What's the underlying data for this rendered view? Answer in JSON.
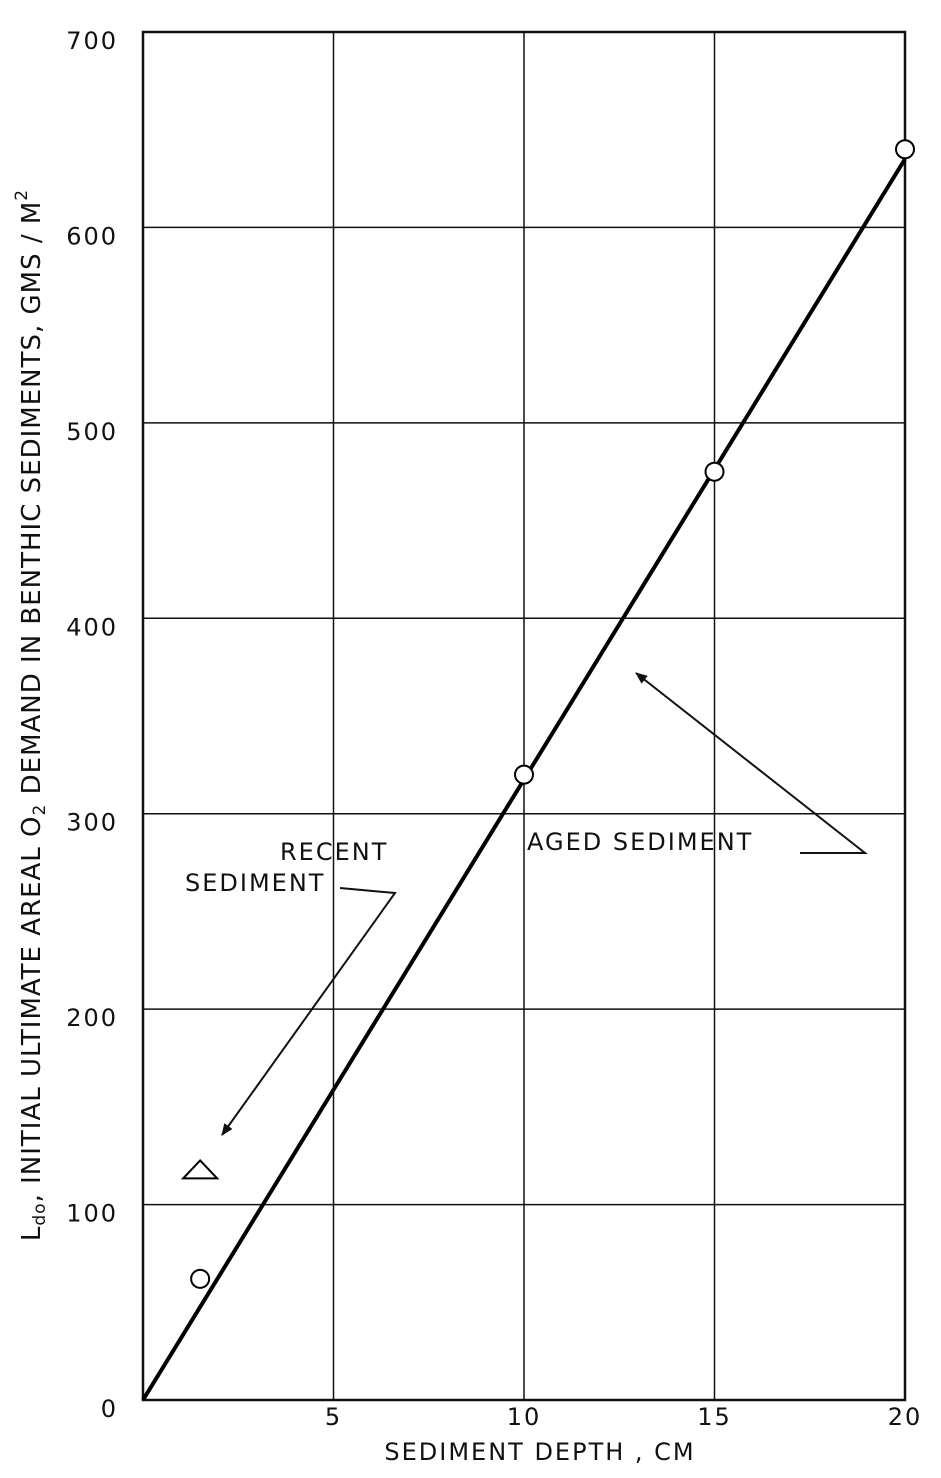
{
  "chart_data": {
    "type": "scatter",
    "xlabel": "SEDIMENT DEPTH , CM",
    "ylabel": [
      "L",
      "do",
      ", INITIAL ULTIMATE AREAL O",
      "2",
      " DEMAND IN BENTHIC SEDIMENTS, GMS / M",
      "2"
    ],
    "xlim": [
      0,
      20
    ],
    "xticks": [
      5,
      10,
      15,
      20
    ],
    "ylim": [
      0,
      700
    ],
    "yticks": [
      0,
      100,
      200,
      300,
      400,
      500,
      600,
      700
    ],
    "grid": true,
    "color": "#000000",
    "series": [
      {
        "marker": "circle",
        "x": [
          1.5,
          10,
          15,
          20
        ],
        "values": [
          62,
          320,
          475,
          640
        ]
      },
      {
        "marker": "triangle",
        "x": [
          1.5
        ],
        "values": [
          118
        ]
      }
    ],
    "fit_line": {
      "x": [
        0,
        20
      ],
      "values": [
        0,
        635
      ]
    },
    "annotations": [
      [
        "RECENT",
        "SEDIMENT"
      ],
      [
        "AGED SEDIMENT"
      ]
    ]
  }
}
